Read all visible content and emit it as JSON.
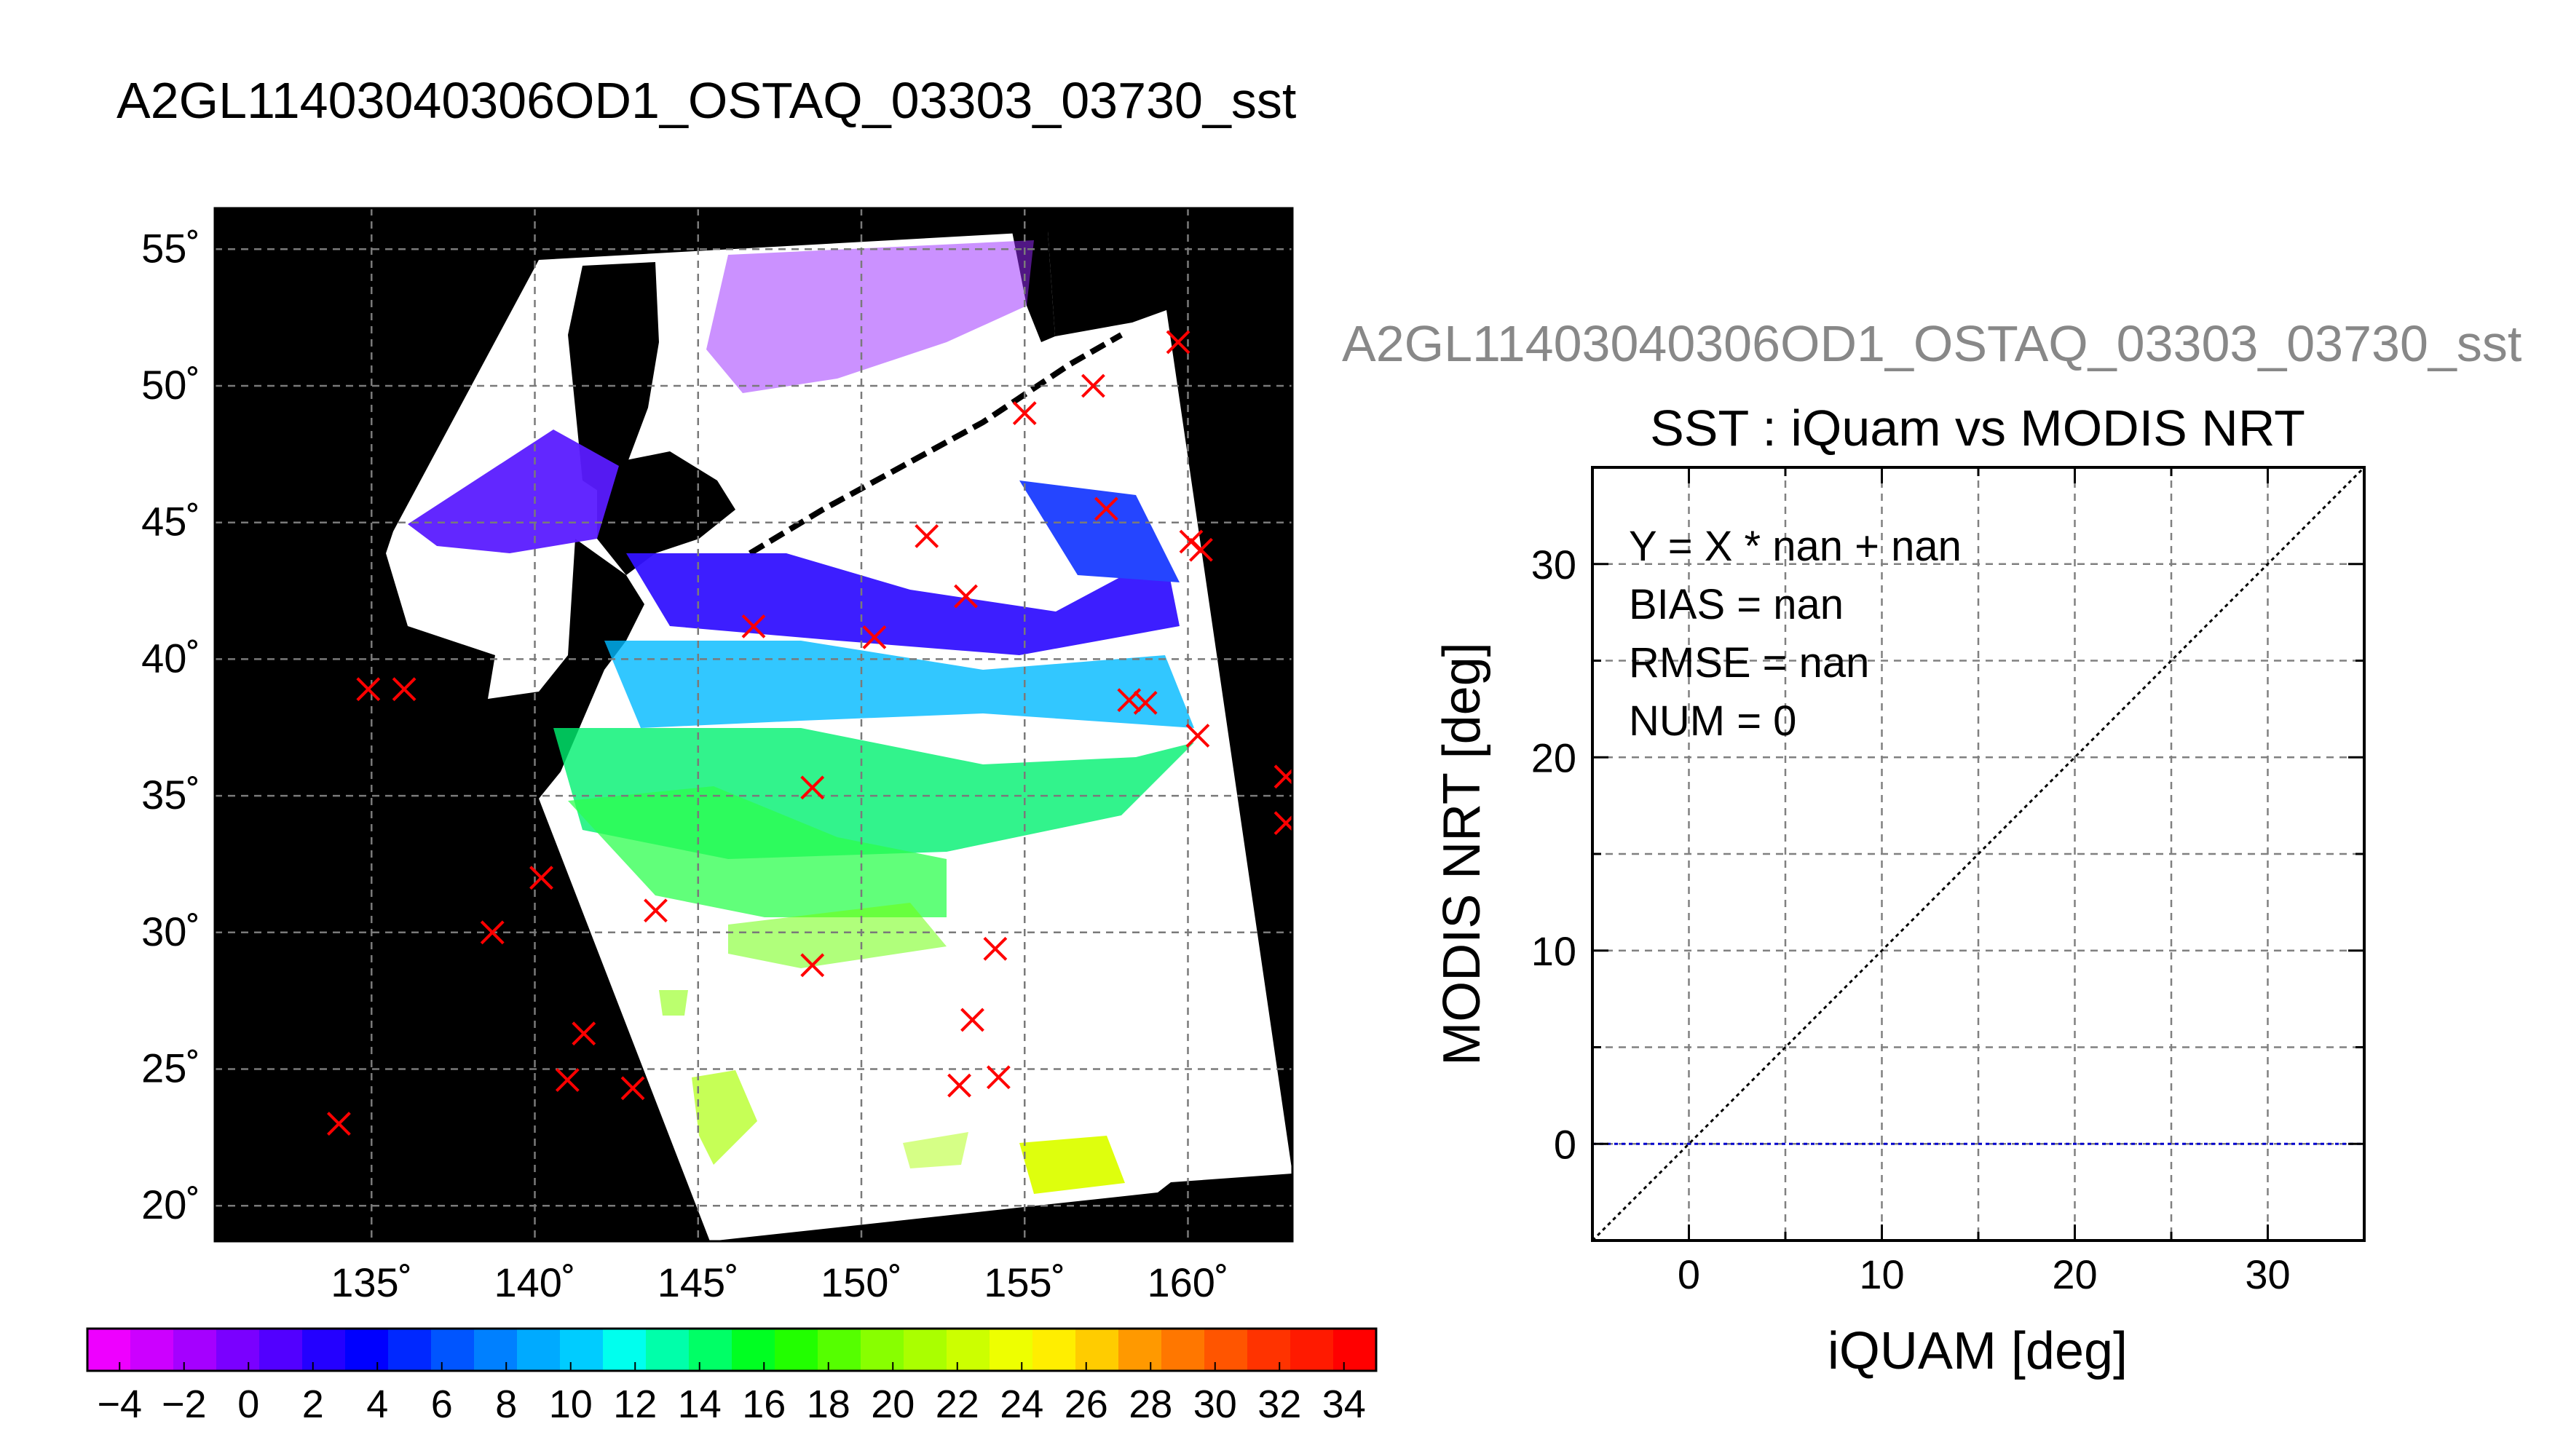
{
  "page_title": "A2GL11403040306OD1_OSTAQ_03303_03730_sst",
  "clipped_title": "A2GL11403040306OD1_OSTAQ_03303_03730_sst",
  "chart_data": [
    {
      "type": "heatmap",
      "title": "",
      "x_ticks": [
        "135˚",
        "140˚",
        "145˚",
        "150˚",
        "155˚",
        "160˚"
      ],
      "y_ticks": [
        "20˚",
        "25˚",
        "30˚",
        "35˚",
        "40˚",
        "45˚",
        "50˚",
        "55˚"
      ],
      "xlim": [
        130.2,
        163.2
      ],
      "ylim": [
        18.7,
        56.5
      ],
      "grid": true,
      "colorbar": {
        "labels": [
          "−4",
          "−2",
          "0",
          "2",
          "4",
          "6",
          "8",
          "10",
          "12",
          "14",
          "16",
          "18",
          "20",
          "22",
          "24",
          "26",
          "28",
          "30",
          "32",
          "34"
        ],
        "range": [
          -5,
          35
        ],
        "colors": [
          "#ee00ff",
          "#cc00ff",
          "#a500ff",
          "#7a00ff",
          "#5200ff",
          "#2400ff",
          "#0000ff",
          "#0028ff",
          "#0055ff",
          "#0080ff",
          "#00aaff",
          "#00ccff",
          "#00ffee",
          "#00ffaa",
          "#00ff66",
          "#00ff22",
          "#22ff00",
          "#55ff00",
          "#88ff00",
          "#aaff00",
          "#ccff00",
          "#eeff00",
          "#ffee00",
          "#ffcc00",
          "#ff9900",
          "#ff7700",
          "#ff5500",
          "#ff3300",
          "#ff1a00",
          "#ff0000"
        ]
      },
      "buoy_markers": [
        {
          "lon": 134.0,
          "lat": 23.0
        },
        {
          "lon": 134.9,
          "lat": 38.9
        },
        {
          "lon": 136.0,
          "lat": 38.9
        },
        {
          "lon": 138.7,
          "lat": 30.0
        },
        {
          "lon": 140.2,
          "lat": 32.0
        },
        {
          "lon": 141.0,
          "lat": 24.6
        },
        {
          "lon": 141.5,
          "lat": 26.3
        },
        {
          "lon": 143.0,
          "lat": 24.3
        },
        {
          "lon": 143.7,
          "lat": 30.8
        },
        {
          "lon": 146.7,
          "lat": 41.2
        },
        {
          "lon": 148.5,
          "lat": 35.3
        },
        {
          "lon": 148.5,
          "lat": 28.8
        },
        {
          "lon": 150.4,
          "lat": 40.8
        },
        {
          "lon": 152.0,
          "lat": 44.5
        },
        {
          "lon": 153.0,
          "lat": 24.4
        },
        {
          "lon": 153.2,
          "lat": 42.3
        },
        {
          "lon": 153.4,
          "lat": 26.8
        },
        {
          "lon": 154.1,
          "lat": 29.4
        },
        {
          "lon": 154.2,
          "lat": 24.7
        },
        {
          "lon": 155.0,
          "lat": 49.0
        },
        {
          "lon": 157.1,
          "lat": 50.0
        },
        {
          "lon": 157.5,
          "lat": 45.5
        },
        {
          "lon": 158.2,
          "lat": 38.5
        },
        {
          "lon": 158.7,
          "lat": 38.4
        },
        {
          "lon": 159.7,
          "lat": 51.6
        },
        {
          "lon": 160.1,
          "lat": 44.3
        },
        {
          "lon": 160.4,
          "lat": 44.0
        },
        {
          "lon": 160.3,
          "lat": 37.2
        },
        {
          "lon": 163.0,
          "lat": 35.7
        },
        {
          "lon": 163.0,
          "lat": 34.0
        }
      ],
      "series_colors": {
        "markers": "#ff0000",
        "background": "#000000"
      }
    },
    {
      "type": "scatter",
      "title": "SST : iQuam vs MODIS NRT",
      "xlabel": "iQUAM [deg]",
      "ylabel": "MODIS NRT [deg]",
      "xlim": [
        -5,
        35
      ],
      "ylim": [
        -5,
        35
      ],
      "x_ticks": [
        0,
        10,
        20,
        30
      ],
      "y_ticks": [
        0,
        10,
        20,
        30
      ],
      "grid": true,
      "annotations": [
        "Y = X * nan + nan",
        "BIAS = nan",
        "RMSE = nan",
        "NUM = 0"
      ],
      "lines": [
        {
          "kind": "identity",
          "x": [
            -5,
            35
          ],
          "y": [
            -5,
            35
          ],
          "color": "#000000",
          "style": "dotted"
        },
        {
          "kind": "zero",
          "x": [
            -5,
            35
          ],
          "y": [
            0,
            0
          ],
          "color": "#0000cc",
          "style": "dotted"
        }
      ],
      "points": []
    }
  ]
}
